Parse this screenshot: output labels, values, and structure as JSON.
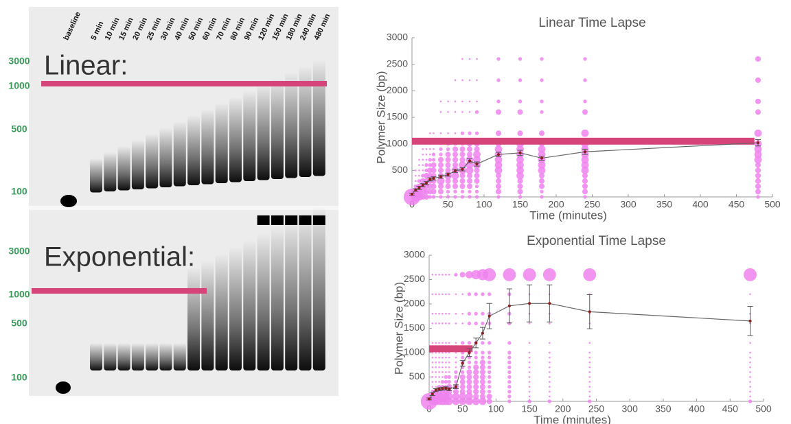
{
  "gel": {
    "lanes": [
      "baseline",
      "5 min",
      "10 min",
      "15 min",
      "20 min",
      "25 min",
      "30 min",
      "40 min",
      "50 min",
      "60 min",
      "70 min",
      "80 min",
      "90 min",
      "120 min",
      "150 min",
      "180 min",
      "240 min",
      "480 min"
    ],
    "label_top": "Linear:",
    "label_bottom": "Exponential:",
    "ladder_top": [
      "3000",
      "1000",
      "500",
      "100"
    ],
    "ladder_bottom": [
      "3000",
      "1000",
      "500",
      "100"
    ]
  },
  "chart_data": [
    {
      "type": "line",
      "title": "Linear Time Lapse",
      "x_label": "Time (minutes)",
      "y_label": "Polymer Size (bp)",
      "xlim": [
        0,
        500
      ],
      "xticks": [
        0,
        50,
        100,
        150,
        200,
        250,
        300,
        350,
        400,
        450,
        500
      ],
      "ylim": [
        0,
        3000
      ],
      "yticks": [
        500,
        1000,
        1500,
        2000,
        2500,
        3000
      ],
      "color": "#666666",
      "marker_color": "#8b1a1a",
      "bubble_color": "#ee82ee",
      "x": [
        0,
        5,
        10,
        15,
        20,
        25,
        30,
        40,
        50,
        60,
        70,
        80,
        90,
        120,
        150,
        180,
        240,
        480
      ],
      "values": [
        50,
        130,
        170,
        220,
        260,
        330,
        350,
        380,
        420,
        490,
        520,
        680,
        620,
        800,
        830,
        730,
        850,
        1020
      ],
      "errors": [
        20,
        25,
        30,
        30,
        30,
        30,
        30,
        30,
        30,
        30,
        30,
        40,
        40,
        40,
        50,
        40,
        50,
        60
      ],
      "reference": {
        "y": 1050,
        "x": [
          0,
          475
        ],
        "color": "#d6457a"
      },
      "bubble_levels": [
        0,
        100,
        200,
        300,
        400,
        500,
        600,
        700,
        800,
        900,
        1000,
        1200,
        1600,
        1800,
        2200,
        2600
      ],
      "bubble_sizes": [
        [
          9,
          0,
          0,
          0,
          0,
          0,
          0,
          0,
          0,
          0,
          0,
          0,
          0,
          0,
          0,
          0
        ],
        [
          5,
          4,
          2,
          1,
          1,
          1,
          0,
          0,
          0,
          0,
          0,
          0,
          0,
          0,
          0,
          0
        ],
        [
          4,
          4,
          3,
          2,
          1,
          1,
          1,
          1,
          0,
          0,
          0,
          0,
          0,
          0,
          0,
          0
        ],
        [
          3,
          4,
          3,
          3,
          2,
          1,
          1,
          1,
          1,
          1,
          0,
          0,
          0,
          0,
          0,
          0
        ],
        [
          3,
          3,
          3,
          3,
          3,
          2,
          2,
          1,
          1,
          1,
          1,
          0,
          0,
          0,
          0,
          0
        ],
        [
          2,
          3,
          3,
          3,
          3,
          3,
          2,
          2,
          1,
          1,
          1,
          1,
          0,
          0,
          0,
          0
        ],
        [
          2,
          3,
          3,
          3,
          3,
          3,
          3,
          2,
          2,
          1,
          1,
          1,
          0,
          0,
          0,
          0
        ],
        [
          2,
          3,
          3,
          4,
          3,
          3,
          3,
          3,
          2,
          2,
          1,
          1,
          1,
          1,
          0,
          0
        ],
        [
          2,
          2,
          3,
          3,
          4,
          3,
          3,
          3,
          3,
          2,
          2,
          1,
          1,
          1,
          0,
          0
        ],
        [
          2,
          2,
          3,
          3,
          4,
          4,
          3,
          3,
          3,
          3,
          2,
          1,
          1,
          1,
          1,
          0
        ],
        [
          2,
          2,
          3,
          3,
          3,
          4,
          4,
          3,
          3,
          3,
          2,
          2,
          1,
          1,
          1,
          1
        ],
        [
          2,
          2,
          3,
          3,
          3,
          4,
          4,
          4,
          3,
          3,
          3,
          2,
          1,
          1,
          1,
          1
        ],
        [
          2,
          2,
          2,
          3,
          3,
          3,
          4,
          4,
          4,
          3,
          3,
          2,
          2,
          1,
          1,
          1
        ],
        [
          2,
          3,
          3,
          3,
          3,
          4,
          4,
          4,
          4,
          4,
          3,
          3,
          3,
          2,
          2,
          2
        ],
        [
          2,
          3,
          3,
          3,
          4,
          4,
          4,
          4,
          4,
          4,
          4,
          3,
          3,
          2,
          2,
          2
        ],
        [
          2,
          2,
          3,
          3,
          3,
          4,
          4,
          4,
          4,
          4,
          3,
          3,
          2,
          2,
          2,
          2
        ],
        [
          2,
          3,
          3,
          3,
          3,
          4,
          4,
          4,
          4,
          4,
          4,
          4,
          3,
          2,
          2,
          2
        ],
        [
          2,
          3,
          3,
          3,
          3,
          3,
          3,
          4,
          4,
          4,
          4,
          4,
          3,
          3,
          3,
          3
        ]
      ]
    },
    {
      "type": "line",
      "title": "Exponential Time Lapse",
      "x_label": "Time (minutes)",
      "y_label": "Polymer Size (bp)",
      "xlim": [
        0,
        500
      ],
      "xticks": [
        0,
        50,
        100,
        150,
        200,
        250,
        300,
        350,
        400,
        450,
        500
      ],
      "ylim": [
        0,
        3000
      ],
      "yticks": [
        500,
        1000,
        1500,
        2000,
        2500,
        3000
      ],
      "color": "#666666",
      "marker_color": "#8b1a1a",
      "bubble_color": "#ee82ee",
      "x": [
        0,
        5,
        10,
        15,
        20,
        25,
        30,
        40,
        50,
        60,
        70,
        80,
        90,
        120,
        150,
        180,
        240,
        480
      ],
      "values": [
        50,
        150,
        230,
        250,
        260,
        270,
        250,
        300,
        780,
        1000,
        1200,
        1400,
        1750,
        1960,
        2010,
        2010,
        1840,
        1650
      ],
      "errors": [
        20,
        30,
        30,
        30,
        30,
        30,
        30,
        40,
        60,
        80,
        100,
        120,
        260,
        350,
        380,
        380,
        350,
        300
      ],
      "reference": {
        "y": 1080,
        "x": [
          0,
          65
        ],
        "color": "#d6457a"
      },
      "bubble_levels": [
        0,
        100,
        200,
        300,
        400,
        500,
        600,
        700,
        800,
        900,
        1000,
        1200,
        1600,
        1800,
        2200,
        2600
      ],
      "bubble_sizes": [
        [
          9,
          0,
          0,
          0,
          0,
          0,
          0,
          0,
          0,
          0,
          0,
          0,
          0,
          0,
          0,
          0
        ],
        [
          4,
          3,
          2,
          1,
          1,
          1,
          1,
          1,
          1,
          1,
          1,
          1,
          1,
          1,
          1,
          1
        ],
        [
          4,
          4,
          3,
          1,
          1,
          1,
          1,
          1,
          1,
          1,
          1,
          1,
          1,
          1,
          1,
          1
        ],
        [
          4,
          4,
          3,
          2,
          1,
          1,
          1,
          1,
          1,
          1,
          1,
          1,
          1,
          1,
          1,
          1
        ],
        [
          4,
          4,
          3,
          2,
          2,
          1,
          1,
          1,
          1,
          1,
          1,
          1,
          1,
          1,
          1,
          1
        ],
        [
          4,
          4,
          3,
          2,
          2,
          2,
          1,
          1,
          1,
          1,
          1,
          1,
          1,
          1,
          1,
          1
        ],
        [
          4,
          4,
          3,
          3,
          2,
          2,
          1,
          1,
          1,
          1,
          1,
          1,
          1,
          1,
          1,
          1
        ],
        [
          4,
          4,
          3,
          3,
          2,
          2,
          2,
          1,
          1,
          1,
          1,
          1,
          1,
          1,
          1,
          2
        ],
        [
          4,
          4,
          3,
          3,
          3,
          3,
          2,
          2,
          2,
          2,
          2,
          2,
          1,
          1,
          1,
          3
        ],
        [
          4,
          4,
          3,
          3,
          3,
          3,
          3,
          2,
          2,
          2,
          2,
          2,
          2,
          2,
          2,
          4
        ],
        [
          4,
          3,
          3,
          3,
          3,
          3,
          3,
          3,
          2,
          2,
          2,
          2,
          2,
          2,
          2,
          5
        ],
        [
          4,
          3,
          3,
          3,
          3,
          3,
          3,
          3,
          3,
          2,
          2,
          2,
          2,
          2,
          2,
          6
        ],
        [
          3,
          3,
          2,
          2,
          2,
          2,
          2,
          2,
          2,
          2,
          2,
          2,
          2,
          2,
          2,
          7
        ],
        [
          2,
          2,
          2,
          2,
          2,
          2,
          2,
          2,
          2,
          2,
          2,
          2,
          2,
          2,
          2,
          7
        ],
        [
          2,
          1,
          1,
          1,
          1,
          1,
          1,
          1,
          1,
          1,
          1,
          1,
          1,
          1,
          1,
          7
        ],
        [
          2,
          1,
          1,
          1,
          1,
          1,
          1,
          1,
          1,
          1,
          1,
          1,
          1,
          1,
          1,
          7
        ],
        [
          2,
          1,
          1,
          1,
          1,
          1,
          1,
          1,
          1,
          1,
          1,
          1,
          1,
          1,
          1,
          7
        ],
        [
          2,
          1,
          1,
          1,
          1,
          1,
          1,
          1,
          1,
          1,
          1,
          1,
          1,
          1,
          1,
          7
        ]
      ]
    }
  ]
}
